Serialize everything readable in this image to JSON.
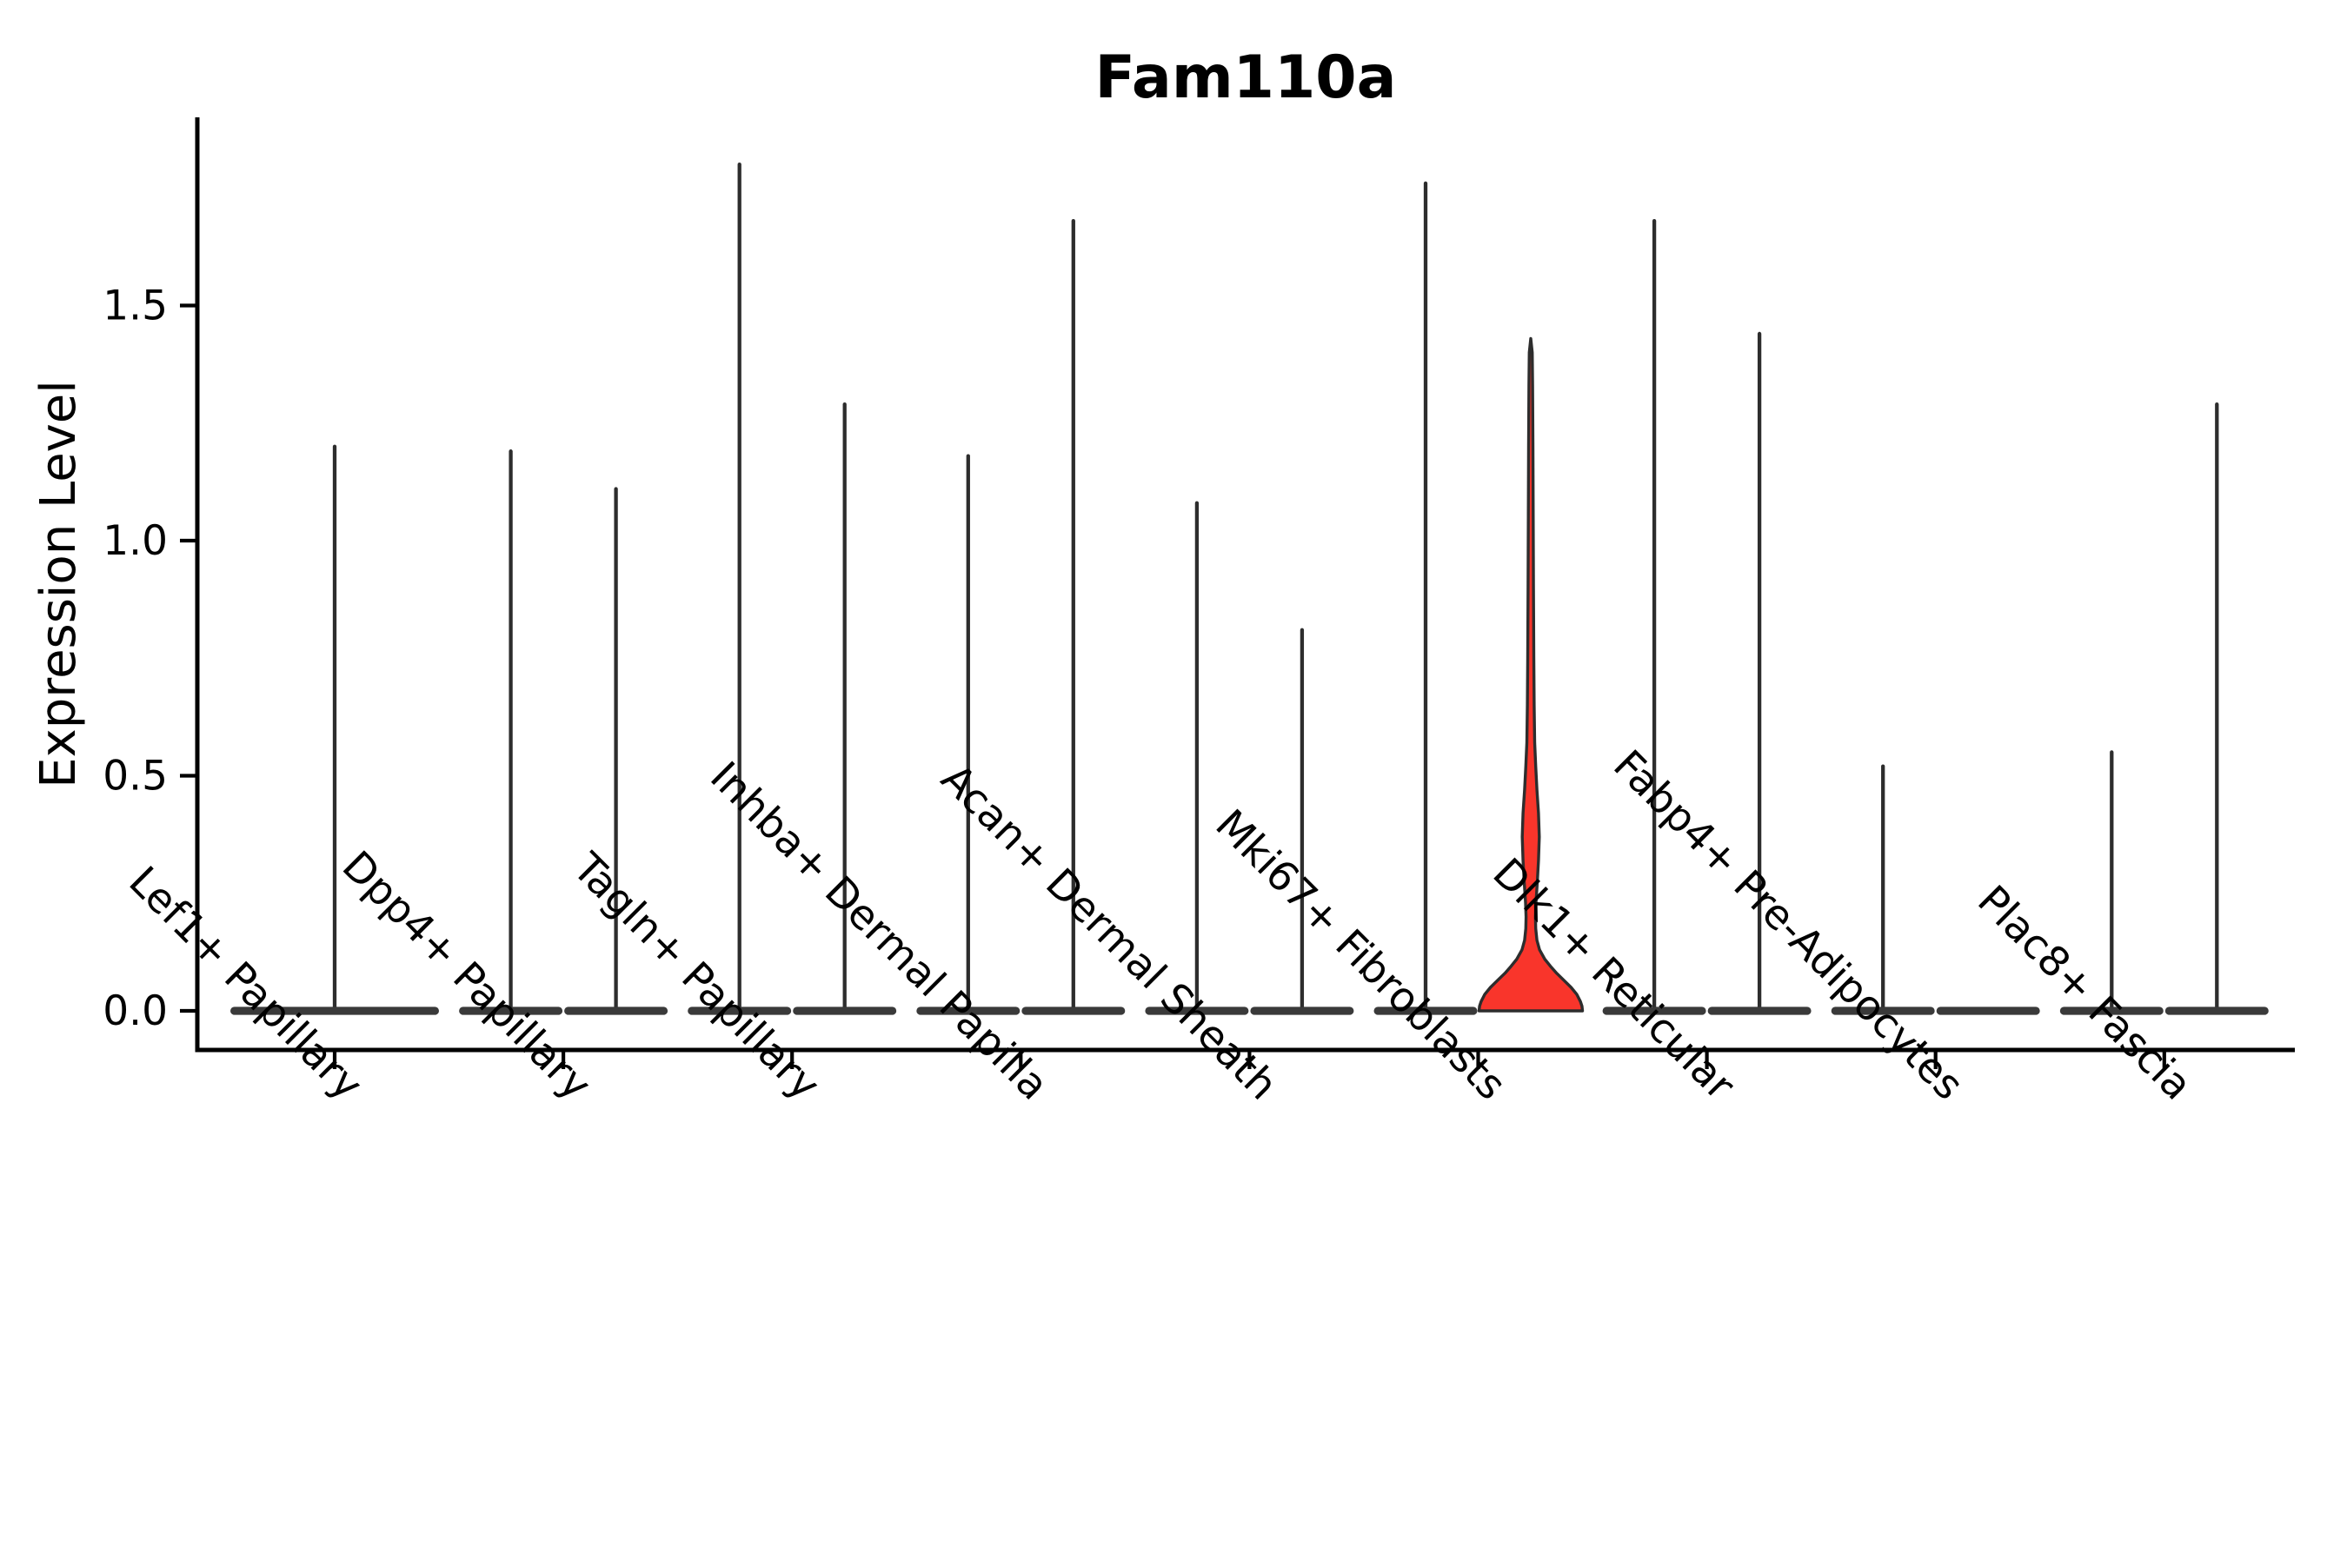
{
  "figure": {
    "title": "Fam110a",
    "ylabel": "Expression Level",
    "xlabel": ""
  },
  "chart_data": {
    "type": "violin",
    "title": "Fam110a",
    "xlabel": "",
    "ylabel": "Expression Level",
    "grid": false,
    "legend_position": "none",
    "y_ticks": [
      {
        "value": 0.0,
        "label": "0.0"
      },
      {
        "value": 0.5,
        "label": "0.5"
      },
      {
        "value": 1.0,
        "label": "1.0"
      },
      {
        "value": 1.5,
        "label": "1.5"
      }
    ],
    "y_axis_range": [
      -0.083,
      1.9
    ],
    "x_tick_rotation_deg": 45,
    "categories": [
      "Lef1+ Papillary",
      "Dpp4+ Papillary",
      "Tagln+ Papillary",
      "Inhba+ Dermal Papilla",
      "Acan+ Dermal Sheath",
      "Mki67+ Fibroblasts",
      "Dlk1+ Reticular",
      "Fabp4+ Pre-Adipocytes",
      "Plac8+ Fascia"
    ],
    "highlighted_violin": {
      "category": "Mki67+ Fibroblasts",
      "position": "right"
    },
    "violins": [
      {
        "category": "Lef1+ Papillary",
        "cat_index": 0,
        "position": "full",
        "max_expression": 1.2
      },
      {
        "category": "Dpp4+ Papillary",
        "cat_index": 1,
        "position": "left",
        "max_expression": 1.19
      },
      {
        "category": "Dpp4+ Papillary",
        "cat_index": 1,
        "position": "right",
        "max_expression": 1.11
      },
      {
        "category": "Tagln+ Papillary",
        "cat_index": 2,
        "position": "left",
        "max_expression": 1.8
      },
      {
        "category": "Tagln+ Papillary",
        "cat_index": 2,
        "position": "right",
        "max_expression": 1.29
      },
      {
        "category": "Inhba+ Dermal Papilla",
        "cat_index": 3,
        "position": "left",
        "max_expression": 1.18
      },
      {
        "category": "Inhba+ Dermal Papilla",
        "cat_index": 3,
        "position": "right",
        "max_expression": 1.68
      },
      {
        "category": "Acan+ Dermal Sheath",
        "cat_index": 4,
        "position": "left",
        "max_expression": 1.08
      },
      {
        "category": "Acan+ Dermal Sheath",
        "cat_index": 4,
        "position": "right",
        "max_expression": 0.81
      },
      {
        "category": "Mki67+ Fibroblasts",
        "cat_index": 5,
        "position": "left",
        "max_expression": 1.76
      },
      {
        "category": "Mki67+ Fibroblasts",
        "cat_index": 5,
        "position": "right",
        "max_expression": 1.43,
        "highlight": true,
        "profile": [
          [
            0.0,
            1.0
          ],
          [
            0.01,
            0.99
          ],
          [
            0.02,
            0.96
          ],
          [
            0.035,
            0.89
          ],
          [
            0.05,
            0.78
          ],
          [
            0.065,
            0.64
          ],
          [
            0.08,
            0.5
          ],
          [
            0.095,
            0.38
          ],
          [
            0.11,
            0.27
          ],
          [
            0.13,
            0.17
          ],
          [
            0.15,
            0.12
          ],
          [
            0.175,
            0.095
          ],
          [
            0.2,
            0.09
          ],
          [
            0.23,
            0.1
          ],
          [
            0.27,
            0.125
          ],
          [
            0.32,
            0.15
          ],
          [
            0.37,
            0.165
          ],
          [
            0.42,
            0.15
          ],
          [
            0.47,
            0.12
          ],
          [
            0.52,
            0.095
          ],
          [
            0.57,
            0.075
          ],
          [
            0.65,
            0.065
          ],
          [
            0.75,
            0.058
          ],
          [
            0.9,
            0.052
          ],
          [
            1.05,
            0.047
          ],
          [
            1.2,
            0.042
          ],
          [
            1.33,
            0.036
          ],
          [
            1.4,
            0.028
          ],
          [
            1.43,
            0.0
          ]
        ]
      },
      {
        "category": "Dlk1+ Reticular",
        "cat_index": 6,
        "position": "left",
        "max_expression": 1.68
      },
      {
        "category": "Dlk1+ Reticular",
        "cat_index": 6,
        "position": "right",
        "max_expression": 1.44
      },
      {
        "category": "Fabp4+ Pre-Adipocytes",
        "cat_index": 7,
        "position": "left",
        "max_expression": 0.52
      },
      {
        "category": "Fabp4+ Pre-Adipocytes",
        "cat_index": 7,
        "position": "right",
        "max_expression": 0.0
      },
      {
        "category": "Plac8+ Fascia",
        "cat_index": 8,
        "position": "left",
        "max_expression": 0.55
      },
      {
        "category": "Plac8+ Fascia",
        "cat_index": 8,
        "position": "right",
        "max_expression": 1.29
      }
    ],
    "colors": {
      "background": "#ffffff",
      "axis": "#000000",
      "violin_outline": "#2d2d2d",
      "violin_base_fill": "#3a3a3a",
      "highlight_fill": "#f9352b"
    }
  }
}
